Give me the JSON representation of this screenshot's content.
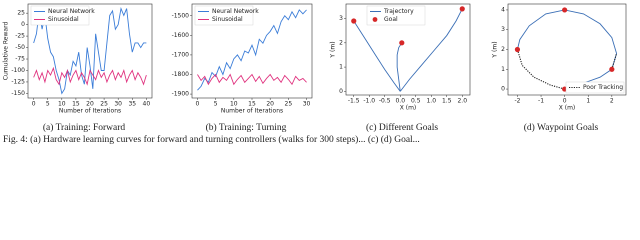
{
  "chart_data": [
    {
      "type": "line",
      "caption": "(a) Training: Forward",
      "xlabel": "Number of Iterations",
      "ylabel": "Cumulative Reward",
      "xlim": [
        -2,
        42
      ],
      "ylim": [
        -160,
        45
      ],
      "xticks": [
        0,
        5,
        10,
        15,
        20,
        25,
        30,
        35,
        40
      ],
      "yticks": [
        -150,
        -125,
        -100,
        -75,
        -50,
        -25,
        0,
        25
      ],
      "legend": "upper-left",
      "series": [
        {
          "name": "Neural Network",
          "color": "#3b7dd8",
          "style": "line",
          "x": [
            0,
            1,
            2,
            3,
            4,
            5,
            6,
            7,
            8,
            9,
            10,
            11,
            12,
            13,
            14,
            15,
            16,
            17,
            18,
            19,
            20,
            21,
            22,
            23,
            24,
            25,
            26,
            27,
            28,
            29,
            30,
            31,
            32,
            33,
            34,
            35,
            36,
            37,
            38,
            39,
            40
          ],
          "values": [
            -40,
            -20,
            30,
            -10,
            20,
            -30,
            -60,
            -70,
            -100,
            -120,
            -150,
            -140,
            -100,
            -110,
            -80,
            -90,
            -60,
            -110,
            -130,
            -50,
            -90,
            -140,
            -20,
            -60,
            -100,
            -100,
            -40,
            20,
            30,
            -10,
            0,
            35,
            20,
            35,
            -20,
            -60,
            -40,
            -40,
            -50,
            -40,
            -40
          ]
        },
        {
          "name": "Sinusoidal",
          "color": "#e0337f",
          "style": "line",
          "x": [
            0,
            1,
            2,
            3,
            4,
            5,
            6,
            7,
            8,
            9,
            10,
            11,
            12,
            13,
            14,
            15,
            16,
            17,
            18,
            19,
            20,
            21,
            22,
            23,
            24,
            25,
            26,
            27,
            28,
            29,
            30,
            31,
            32,
            33,
            34,
            35,
            36,
            37,
            38,
            39,
            40
          ],
          "values": [
            -115,
            -100,
            -120,
            -105,
            -125,
            -100,
            -110,
            -95,
            -120,
            -130,
            -105,
            -115,
            -100,
            -125,
            -110,
            -100,
            -120,
            -105,
            -115,
            -130,
            -100,
            -110,
            -120,
            -100,
            -115,
            -105,
            -125,
            -110,
            -100,
            -120,
            -105,
            -115,
            -100,
            -125,
            -110,
            -100,
            -120,
            -105,
            -115,
            -130,
            -110
          ]
        }
      ]
    },
    {
      "type": "line",
      "caption": "(b) Training: Turning",
      "xlabel": "Number of Iterations",
      "xlim": [
        -1.5,
        31.5
      ],
      "ylim": [
        -1920,
        -1440
      ],
      "xticks": [
        0,
        5,
        10,
        15,
        20,
        25,
        30
      ],
      "yticks": [
        -1900,
        -1800,
        -1700,
        -1600,
        -1500
      ],
      "legend": "upper-left",
      "series": [
        {
          "name": "Neural Network",
          "color": "#3b7dd8",
          "style": "line",
          "x": [
            0,
            1,
            2,
            3,
            4,
            5,
            6,
            7,
            8,
            9,
            10,
            11,
            12,
            13,
            14,
            15,
            16,
            17,
            18,
            19,
            20,
            21,
            22,
            23,
            24,
            25,
            26,
            27,
            28,
            29,
            30
          ],
          "values": [
            -1880,
            -1860,
            -1820,
            -1840,
            -1790,
            -1810,
            -1760,
            -1800,
            -1740,
            -1770,
            -1720,
            -1700,
            -1730,
            -1680,
            -1690,
            -1650,
            -1700,
            -1620,
            -1640,
            -1600,
            -1580,
            -1550,
            -1590,
            -1530,
            -1500,
            -1520,
            -1480,
            -1510,
            -1470,
            -1490,
            -1470
          ]
        },
        {
          "name": "Sinusoidal",
          "color": "#e0337f",
          "style": "line",
          "x": [
            0,
            1,
            2,
            3,
            4,
            5,
            6,
            7,
            8,
            9,
            10,
            11,
            12,
            13,
            14,
            15,
            16,
            17,
            18,
            19,
            20,
            21,
            22,
            23,
            24,
            25,
            26,
            27,
            28,
            29,
            30
          ],
          "values": [
            -1800,
            -1830,
            -1810,
            -1850,
            -1820,
            -1800,
            -1840,
            -1815,
            -1830,
            -1800,
            -1850,
            -1825,
            -1805,
            -1840,
            -1820,
            -1800,
            -1835,
            -1810,
            -1845,
            -1820,
            -1800,
            -1830,
            -1815,
            -1840,
            -1805,
            -1825,
            -1850,
            -1810,
            -1830,
            -1820,
            -1840
          ]
        }
      ]
    },
    {
      "type": "line",
      "caption": "(c) Different Goals",
      "xlabel": "X (m)",
      "ylabel": "Y (m)",
      "xlim": [
        -1.75,
        2.25
      ],
      "ylim": [
        -0.15,
        3.6
      ],
      "xticks": [
        -1.5,
        {
          "value": -1,
          "label": "-1.0"
        },
        -0.5,
        {
          "value": 0,
          "label": "0.0"
        },
        0.5,
        {
          "value": 1,
          "label": "1.0"
        },
        1.5,
        {
          "value": 2,
          "label": "2.0"
        }
      ],
      "yticks": [
        0,
        1,
        2,
        3
      ],
      "legend": "upper-center",
      "series": [
        {
          "name": "Trajectory",
          "color": "#3b6fb6",
          "style": "line",
          "x": [
            0,
            -0.2,
            -0.5,
            -0.8,
            -1.1,
            -1.35,
            -1.5
          ],
          "values": [
            0,
            0.35,
            0.9,
            1.5,
            2.1,
            2.6,
            2.9
          ]
        },
        {
          "color": "#3b6fb6",
          "style": "line",
          "x": [
            0,
            -0.05,
            -0.1,
            -0.1,
            -0.05,
            0.05
          ],
          "values": [
            0,
            0.5,
            1.0,
            1.5,
            1.8,
            2.0
          ]
        },
        {
          "color": "#3b6fb6",
          "style": "line",
          "x": [
            0,
            0.3,
            0.7,
            1.1,
            1.5,
            1.8,
            2.0
          ],
          "values": [
            0,
            0.5,
            1.1,
            1.7,
            2.3,
            2.9,
            3.4
          ]
        },
        {
          "name": "Goal",
          "color": "#d62728",
          "style": "scatter",
          "x": [
            -1.5,
            0.05,
            2.0
          ],
          "values": [
            2.9,
            2.0,
            3.4
          ]
        }
      ]
    },
    {
      "type": "line",
      "caption": "(d) Waypoint Goals",
      "xlabel": "X (m)",
      "ylabel": "Y (m)",
      "xlim": [
        -2.4,
        2.6
      ],
      "ylim": [
        -0.3,
        4.3
      ],
      "xticks": [
        -2,
        -1,
        0,
        1,
        2
      ],
      "yticks": [
        0,
        1,
        2,
        3,
        4
      ],
      "legend": "lower-right",
      "series": [
        {
          "color": "#3b6fb6",
          "style": "line",
          "x": [
            0,
            0.8,
            1.5,
            2.0,
            2.2,
            2.0,
            1.5,
            0.8,
            0,
            -0.8,
            -1.5,
            -1.9,
            -2.0
          ],
          "values": [
            0,
            0.3,
            0.6,
            1.0,
            1.8,
            2.6,
            3.3,
            3.8,
            4.0,
            3.8,
            3.2,
            2.5,
            2.0
          ]
        },
        {
          "name": "Poor Tracking",
          "color": "#222222",
          "style": "dotted",
          "x": [
            -2.0,
            -1.8,
            -1.3,
            -0.6,
            0,
            null,
            2.0,
            2.2
          ],
          "values": [
            2.0,
            1.2,
            0.6,
            0.2,
            0,
            null,
            1.0,
            1.8
          ]
        },
        {
          "color": "#d62728",
          "style": "scatter",
          "x": [
            0,
            -2,
            0,
            2
          ],
          "values": [
            4,
            2,
            0,
            1
          ]
        }
      ]
    }
  ],
  "figure_caption": "Fig. 4: (a) Hardware learning curves for forward and turning controllers (walks for 300 steps)... (c) (d) Goal..."
}
